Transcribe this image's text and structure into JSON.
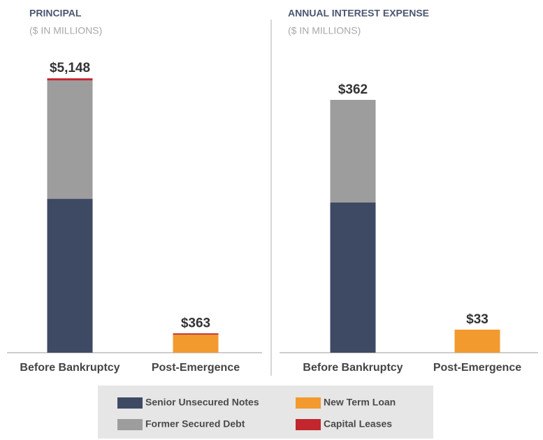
{
  "chart_data": [
    {
      "type": "stacked-bar",
      "title": "PRINCIPAL",
      "subtitle": "($ IN MILLIONS)",
      "categories": [
        "Before Bankruptcy",
        "Post-Emergence"
      ],
      "series": [
        {
          "name": "Senior Unsecured Notes",
          "color": "#3e4a64",
          "values": [
            2888,
            0
          ]
        },
        {
          "name": "Former Secured Debt",
          "color": "#9d9d9d",
          "values": [
            2220,
            0
          ]
        },
        {
          "name": "New Term Loan",
          "color": "#f39a2e",
          "values": [
            0,
            338
          ]
        },
        {
          "name": "Capital Leases",
          "color": "#c1272d",
          "values": [
            40,
            25
          ]
        }
      ],
      "totals": [
        5148,
        363
      ],
      "total_labels": [
        "$5,148",
        "$363"
      ],
      "ylim": [
        0,
        5700
      ]
    },
    {
      "type": "stacked-bar",
      "title": "ANNUAL INTEREST EXPENSE",
      "subtitle": "($ IN MILLIONS)",
      "categories": [
        "Before Bankruptcy",
        "Post-Emergence"
      ],
      "series": [
        {
          "name": "Senior Unsecured Notes",
          "color": "#3e4a64",
          "values": [
            215,
            0
          ]
        },
        {
          "name": "Former Secured Debt",
          "color": "#9d9d9d",
          "values": [
            147,
            0
          ]
        },
        {
          "name": "New Term Loan",
          "color": "#f39a2e",
          "values": [
            0,
            33
          ]
        },
        {
          "name": "Capital Leases",
          "color": "#c1272d",
          "values": [
            0,
            0
          ]
        }
      ],
      "totals": [
        362,
        33
      ],
      "total_labels": [
        "$362",
        "$33"
      ],
      "ylim": [
        0,
        435
      ]
    }
  ]
}
